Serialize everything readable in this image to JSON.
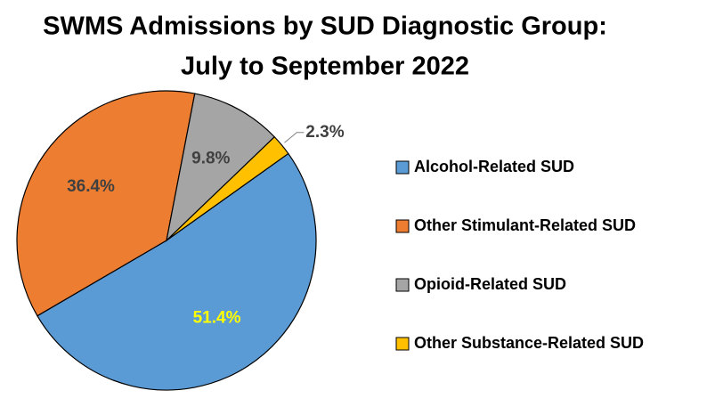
{
  "chart_data": {
    "type": "pie",
    "title": [
      "SWMS Admissions by SUD Diagnostic Group:",
      "July to September 2022"
    ],
    "categories": [
      "Alcohol-Related SUD",
      "Other Stimulant-Related SUD",
      "Opioid-Related SUD",
      "Other Substance-Related SUD"
    ],
    "values": [
      51.4,
      36.4,
      9.8,
      2.3
    ],
    "value_labels": [
      "51.4%",
      "36.4%",
      "9.8%",
      "2.3%"
    ],
    "colors": [
      "#5b9bd5",
      "#ed7d31",
      "#a5a5a5",
      "#ffc000"
    ],
    "label_colors": [
      "#ffff00",
      "#404040",
      "#404040",
      "#404040"
    ],
    "legend": "right"
  }
}
